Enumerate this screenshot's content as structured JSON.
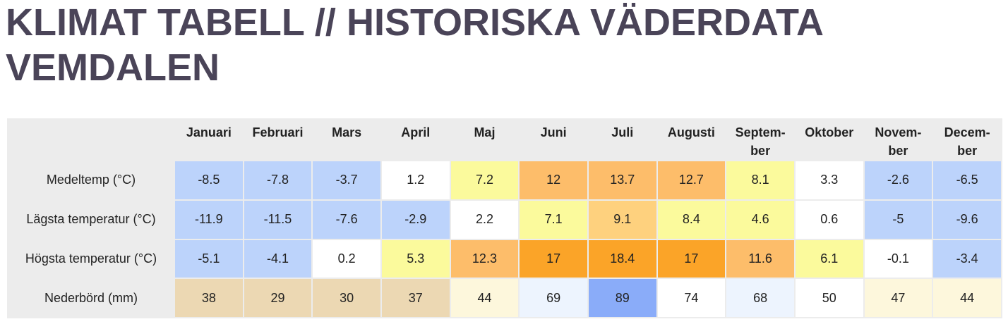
{
  "page": {
    "title_line1": "KLIMAT TABELL // HISTORISKA VÄDERDATA",
    "title_line2": "VEMDALEN"
  },
  "table": {
    "months": [
      "Januari",
      "Februari",
      "Mars",
      "April",
      "Maj",
      "Juni",
      "Juli",
      "Augusti",
      "Septem- ber",
      "Oktober",
      "Novem- ber",
      "Decem- ber"
    ],
    "rows": [
      {
        "label": "Medeltemp (°C)",
        "values": [
          "-8.5",
          "-7.8",
          "-3.7",
          "1.2",
          "7.2",
          "12",
          "13.7",
          "12.7",
          "8.1",
          "3.3",
          "-2.6",
          "-6.5"
        ],
        "colors": [
          "#bcd3fb",
          "#bcd3fb",
          "#bcd3fb",
          "#ffffff",
          "#fbfa9c",
          "#fdbd6a",
          "#fdbd6a",
          "#fdbd6a",
          "#fbfa9c",
          "#ffffff",
          "#bcd3fb",
          "#bcd3fb"
        ]
      },
      {
        "label": "Lägsta temperatur (°C)",
        "values": [
          "-11.9",
          "-11.5",
          "-7.6",
          "-2.9",
          "2.2",
          "7.1",
          "9.1",
          "8.4",
          "4.6",
          "0.6",
          "-5",
          "-9.6"
        ],
        "colors": [
          "#bcd3fb",
          "#bcd3fb",
          "#bcd3fb",
          "#bcd3fb",
          "#ffffff",
          "#fbfa9c",
          "#fed17e",
          "#fbfa9c",
          "#fbfa9c",
          "#ffffff",
          "#bcd3fb",
          "#bcd3fb"
        ]
      },
      {
        "label": "Högsta temperatur (°C)",
        "values": [
          "-5.1",
          "-4.1",
          "0.2",
          "5.3",
          "12.3",
          "17",
          "18.4",
          "17",
          "11.6",
          "6.1",
          "-0.1",
          "-3.4"
        ],
        "colors": [
          "#bcd3fb",
          "#bcd3fb",
          "#ffffff",
          "#fbfa9c",
          "#fdbd6a",
          "#fba428",
          "#fba428",
          "#fba428",
          "#fdbd6a",
          "#fbfa9c",
          "#ffffff",
          "#bcd3fb"
        ]
      },
      {
        "label": "Nederbörd (mm)",
        "values": [
          "38",
          "29",
          "30",
          "37",
          "44",
          "69",
          "89",
          "74",
          "68",
          "50",
          "47",
          "44"
        ],
        "colors": [
          "#ecd8b3",
          "#ecd8b3",
          "#ecd8b3",
          "#ecd8b3",
          "#fdf7dc",
          "#edf4fe",
          "#8aacf9",
          "#ffffff",
          "#edf4fe",
          "#ffffff",
          "#fdf7dc",
          "#fdf7dc"
        ]
      }
    ]
  }
}
